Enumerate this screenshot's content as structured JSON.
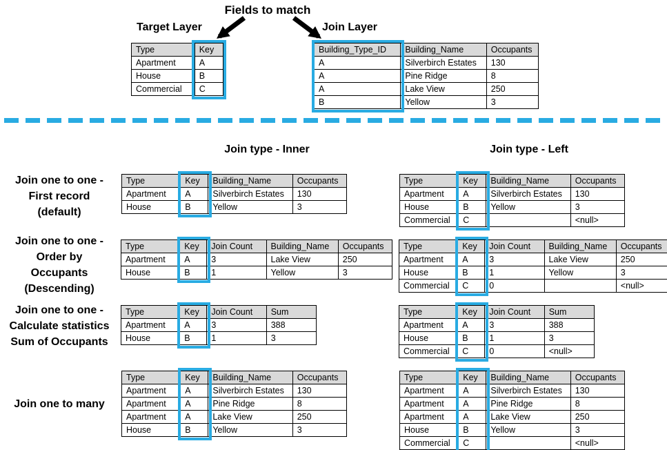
{
  "colors": {
    "accent": "#29ABE2",
    "header_bg": "#D9D9D9",
    "border": "#000000"
  },
  "top": {
    "fields_to_match": "Fields to match",
    "target_layer_label": "Target Layer",
    "join_layer_label": "Join Layer"
  },
  "section_headers": {
    "inner": "Join type - Inner",
    "left": "Join type - Left"
  },
  "row_labels": [
    {
      "name": "label-first-record",
      "lines": [
        "Join one to one -",
        "First record",
        "(default)"
      ]
    },
    {
      "name": "label-order-by",
      "lines": [
        "Join one to one -",
        "Order by",
        "Occupants",
        "(Descending)"
      ]
    },
    {
      "name": "label-statistics",
      "lines": [
        "Join one to one -",
        "Calculate statistics",
        "Sum of Occupants"
      ]
    },
    {
      "name": "label-one-to-many",
      "lines": [
        "Join one to many"
      ]
    }
  ],
  "tables": [
    {
      "name": "target-layer-table",
      "key_col": 1,
      "headers": [
        "Type",
        "Key"
      ],
      "rows": [
        [
          "Apartment",
          "A"
        ],
        [
          "House",
          "B"
        ],
        [
          "Commercial",
          "C"
        ]
      ]
    },
    {
      "name": "join-layer-table",
      "key_col": 0,
      "headers": [
        "Building_Type_ID",
        "Building_Name",
        "Occupants"
      ],
      "rows": [
        [
          "A",
          "Silverbirch Estates",
          "130"
        ],
        [
          "A",
          "Pine Ridge",
          "8"
        ],
        [
          "A",
          "Lake View",
          "250"
        ],
        [
          "B",
          "Yellow",
          "3"
        ]
      ]
    },
    {
      "name": "inner-first-record-table",
      "key_col": 1,
      "headers": [
        "Type",
        "Key",
        "Building_Name",
        "Occupants"
      ],
      "rows": [
        [
          "Apartment",
          "A",
          "Silverbirch Estates",
          "130"
        ],
        [
          "House",
          "B",
          "Yellow",
          "3"
        ]
      ]
    },
    {
      "name": "left-first-record-table",
      "key_col": 1,
      "headers": [
        "Type",
        "Key",
        "Building_Name",
        "Occupants"
      ],
      "rows": [
        [
          "Apartment",
          "A",
          "Silverbirch Estates",
          "130"
        ],
        [
          "House",
          "B",
          "Yellow",
          "3"
        ],
        [
          "Commercial",
          "C",
          "",
          "<null>"
        ]
      ]
    },
    {
      "name": "inner-order-by-table",
      "key_col": 1,
      "headers": [
        "Type",
        "Key",
        "Join Count",
        "Building_Name",
        "Occupants"
      ],
      "rows": [
        [
          "Apartment",
          "A",
          "3",
          "Lake View",
          "250"
        ],
        [
          "House",
          "B",
          "1",
          "Yellow",
          "3"
        ]
      ]
    },
    {
      "name": "left-order-by-table",
      "key_col": 1,
      "headers": [
        "Type",
        "Key",
        "Join Count",
        "Building_Name",
        "Occupants"
      ],
      "rows": [
        [
          "Apartment",
          "A",
          "3",
          "Lake View",
          "250"
        ],
        [
          "House",
          "B",
          "1",
          "Yellow",
          "3"
        ],
        [
          "Commercial",
          "C",
          "0",
          "",
          "<null>"
        ]
      ]
    },
    {
      "name": "inner-statistics-table",
      "key_col": 1,
      "headers": [
        "Type",
        "Key",
        "Join Count",
        "Sum"
      ],
      "rows": [
        [
          "Apartment",
          "A",
          "3",
          "388"
        ],
        [
          "House",
          "B",
          "1",
          "3"
        ]
      ]
    },
    {
      "name": "left-statistics-table",
      "key_col": 1,
      "headers": [
        "Type",
        "Key",
        "Join Count",
        "Sum"
      ],
      "rows": [
        [
          "Apartment",
          "A",
          "3",
          "388"
        ],
        [
          "House",
          "B",
          "1",
          "3"
        ],
        [
          "Commercial",
          "C",
          "0",
          "<null>"
        ]
      ]
    },
    {
      "name": "inner-one-to-many-table",
      "key_col": 1,
      "headers": [
        "Type",
        "Key",
        "Building_Name",
        "Occupants"
      ],
      "rows": [
        [
          "Apartment",
          "A",
          "Silverbirch Estates",
          "130"
        ],
        [
          "Apartment",
          "A",
          "Pine Ridge",
          "8"
        ],
        [
          "Apartment",
          "A",
          "Lake View",
          "250"
        ],
        [
          "House",
          "B",
          "Yellow",
          "3"
        ]
      ]
    },
    {
      "name": "left-one-to-many-table",
      "key_col": 1,
      "headers": [
        "Type",
        "Key",
        "Building_Name",
        "Occupants"
      ],
      "rows": [
        [
          "Apartment",
          "A",
          "Silverbirch Estates",
          "130"
        ],
        [
          "Apartment",
          "A",
          "Pine Ridge",
          "8"
        ],
        [
          "Apartment",
          "A",
          "Lake View",
          "250"
        ],
        [
          "House",
          "B",
          "Yellow",
          "3"
        ],
        [
          "Commercial",
          "C",
          "",
          "<null>"
        ]
      ]
    }
  ]
}
